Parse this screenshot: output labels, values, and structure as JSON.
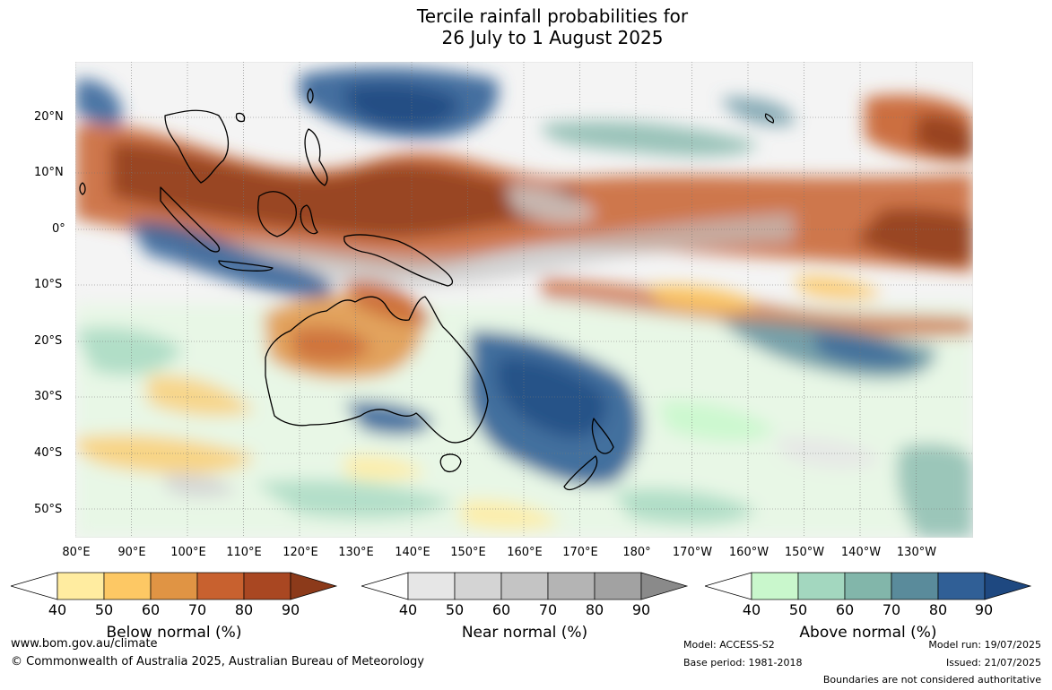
{
  "title_line1": "Tercile rainfall probabilities for",
  "title_line2": "26 July to 1 August 2025",
  "lat_labels": [
    "20°N",
    "10°N",
    "0°",
    "10°S",
    "20°S",
    "30°S",
    "40°S",
    "50°S"
  ],
  "lon_labels": [
    "80°E",
    "90°E",
    "100°E",
    "110°E",
    "120°E",
    "130°E",
    "140°E",
    "150°E",
    "160°E",
    "170°E",
    "180°",
    "170°W",
    "160°W",
    "150°W",
    "140°W",
    "130°W"
  ],
  "colorbars": [
    {
      "title": "Below normal (%)",
      "ticks": [
        "40",
        "50",
        "60",
        "70",
        "80",
        "90"
      ],
      "colors": [
        "#ffffff",
        "#ffeca0",
        "#fdc864",
        "#e09444",
        "#c8612f",
        "#a94722",
        "#8c3a1a"
      ]
    },
    {
      "title": "Near normal (%)",
      "ticks": [
        "40",
        "50",
        "60",
        "70",
        "80",
        "90"
      ],
      "colors": [
        "#ffffff",
        "#e6e6e6",
        "#d4d4d4",
        "#c4c4c4",
        "#b4b4b4",
        "#a2a2a2",
        "#8a8a8a"
      ]
    },
    {
      "title": "Above normal (%)",
      "ticks": [
        "40",
        "50",
        "60",
        "70",
        "80",
        "90"
      ],
      "colors": [
        "#ffffff",
        "#c9f7cc",
        "#a3d7bf",
        "#82b6aa",
        "#5a8b9b",
        "#305f96",
        "#1e4880"
      ]
    }
  ],
  "footer": {
    "website": "www.bom.gov.au/climate",
    "copyright": "© Commonwealth of Australia 2025, Australian Bureau of Meteorology",
    "model": "Model: ACCESS-S2",
    "base_period": "Base period: 1981-2018",
    "model_run": "Model run: 19/07/2025",
    "issued": "Issued: 21/07/2025",
    "disclaimer": "Boundaries are not considered authoritative"
  }
}
